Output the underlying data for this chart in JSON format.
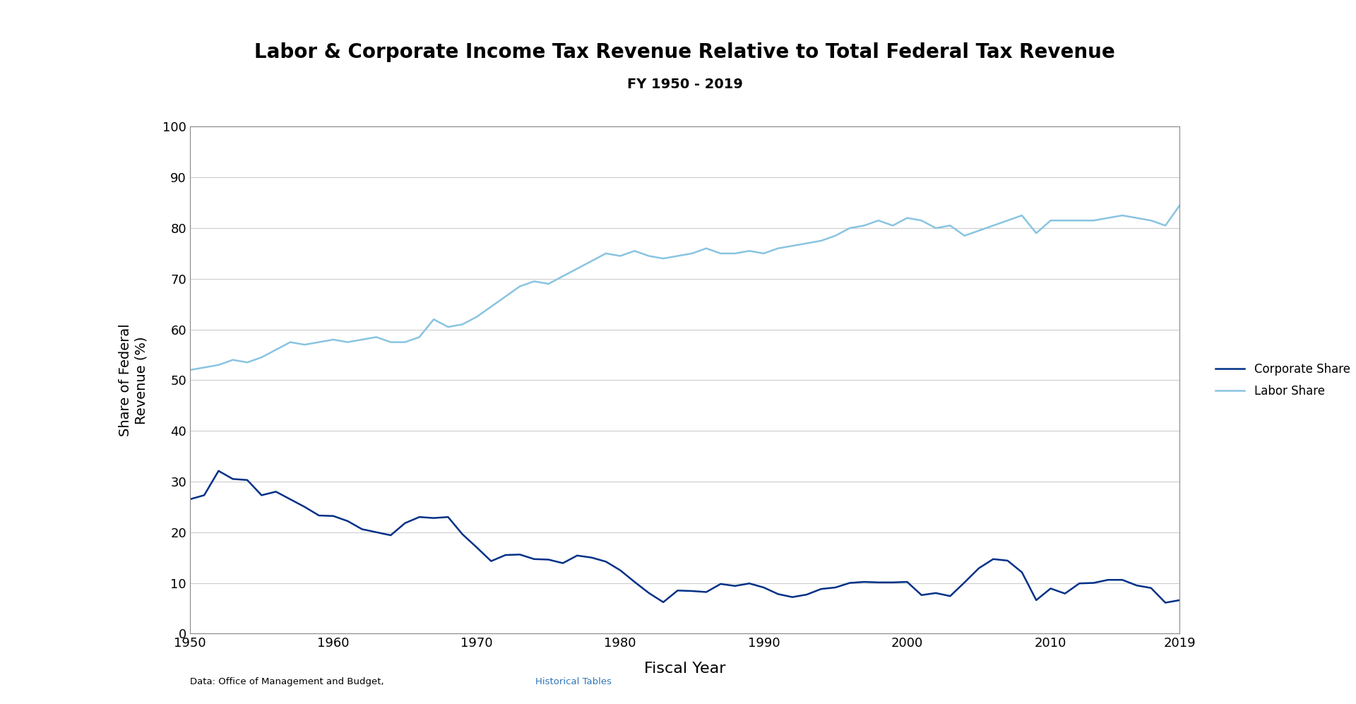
{
  "title": "Labor & Corporate Income Tax Revenue Relative to Total Federal Tax Revenue",
  "subtitle": "FY 1950 - 2019",
  "xlabel": "Fiscal Year",
  "ylabel": "Share of Federal\nRevenue (%)",
  "ylim": [
    0,
    100
  ],
  "xlim": [
    1950,
    2019
  ],
  "yticks": [
    0,
    10,
    20,
    30,
    40,
    50,
    60,
    70,
    80,
    90,
    100
  ],
  "xticks": [
    1950,
    1960,
    1970,
    1980,
    1990,
    2000,
    2010,
    2019
  ],
  "corporate_color": "#003087",
  "labor_color": "#89c4e1",
  "background_color": "#ffffff",
  "source_text": "Data: Office of Management and Budget, ",
  "source_link": "Historical Tables",
  "source_color": "#000000",
  "source_link_color": "#2e75b6",
  "years": [
    1950,
    1951,
    1952,
    1953,
    1954,
    1955,
    1956,
    1957,
    1958,
    1959,
    1960,
    1961,
    1962,
    1963,
    1964,
    1965,
    1966,
    1967,
    1968,
    1969,
    1970,
    1971,
    1972,
    1973,
    1974,
    1975,
    1976,
    1977,
    1978,
    1979,
    1980,
    1981,
    1982,
    1983,
    1984,
    1985,
    1986,
    1987,
    1988,
    1989,
    1990,
    1991,
    1992,
    1993,
    1994,
    1995,
    1996,
    1997,
    1998,
    1999,
    2000,
    2001,
    2002,
    2003,
    2004,
    2005,
    2006,
    2007,
    2008,
    2009,
    2010,
    2011,
    2012,
    2013,
    2014,
    2015,
    2016,
    2017,
    2018,
    2019
  ],
  "corporate_share": [
    26.5,
    27.3,
    32.1,
    30.5,
    30.3,
    27.3,
    28.0,
    26.5,
    25.0,
    23.3,
    23.2,
    22.2,
    20.6,
    20.0,
    19.4,
    21.8,
    23.0,
    22.8,
    23.0,
    19.6,
    17.0,
    14.3,
    15.5,
    15.6,
    14.7,
    14.6,
    13.9,
    15.4,
    15.0,
    14.2,
    12.5,
    10.2,
    8.0,
    6.2,
    8.5,
    8.4,
    8.2,
    9.8,
    9.4,
    9.9,
    9.1,
    7.8,
    7.2,
    7.7,
    8.8,
    9.1,
    10.0,
    10.2,
    10.1,
    10.1,
    10.2,
    7.6,
    8.0,
    7.4,
    10.1,
    12.9,
    14.7,
    14.4,
    12.1,
    6.6,
    8.9,
    7.9,
    9.9,
    10.0,
    10.6,
    10.6,
    9.5,
    9.0,
    6.1,
    6.6
  ],
  "labor_share": [
    52.0,
    52.5,
    53.0,
    54.0,
    53.5,
    54.5,
    56.0,
    57.5,
    57.0,
    57.5,
    58.0,
    57.5,
    58.0,
    58.5,
    57.5,
    57.5,
    58.5,
    62.0,
    60.5,
    61.0,
    62.5,
    64.5,
    66.5,
    68.5,
    69.5,
    69.0,
    70.5,
    72.0,
    73.5,
    75.0,
    74.5,
    75.5,
    74.5,
    74.0,
    74.5,
    75.0,
    76.0,
    75.0,
    75.0,
    75.5,
    75.0,
    76.0,
    76.5,
    77.0,
    77.5,
    78.5,
    80.0,
    80.5,
    81.5,
    80.5,
    82.0,
    81.5,
    80.0,
    80.5,
    78.5,
    79.5,
    80.5,
    81.5,
    82.5,
    79.0,
    81.5,
    81.5,
    81.5,
    81.5,
    82.0,
    82.5,
    82.0,
    81.5,
    80.5,
    84.5
  ]
}
